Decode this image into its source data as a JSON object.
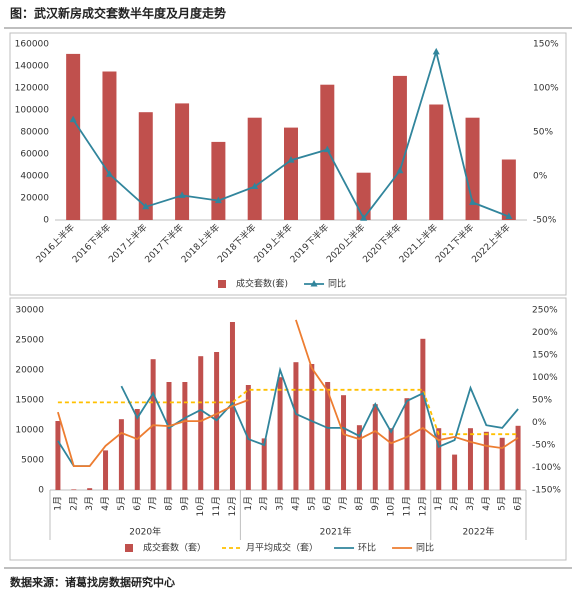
{
  "header": {
    "title": "图：武汉新房成交套数半年度及月度走势"
  },
  "chart_data": [
    {
      "type": "bar_line",
      "categories": [
        "2016上半年",
        "2016下半年",
        "2017上半年",
        "2017下半年",
        "2018上半年",
        "2018下半年",
        "2019上半年",
        "2019下半年",
        "2020上半年",
        "2020下半年",
        "2021上半年",
        "2021下半年",
        "2022上半年"
      ],
      "series": [
        {
          "name": "成交套数(套)",
          "type": "bar",
          "color": "#c0504d",
          "values": [
            151000,
            135000,
            98000,
            106000,
            71000,
            93000,
            84000,
            123000,
            43000,
            131000,
            105000,
            93000,
            55000
          ]
        },
        {
          "name": "同比",
          "type": "line",
          "axis": "y2",
          "marker": "triangle",
          "color": "#31859c",
          "values": [
            64,
            2,
            -35,
            -22,
            -28,
            -12,
            18,
            30,
            -48,
            6,
            141,
            -30,
            -46
          ]
        }
      ],
      "ylim": [
        0,
        160000
      ],
      "yticks": [
        0,
        20000,
        40000,
        60000,
        80000,
        100000,
        120000,
        140000,
        160000
      ],
      "y2lim": [
        -50,
        150
      ],
      "y2ticks": [
        {
          "value": -50,
          "label": "-50%"
        },
        {
          "value": 0,
          "label": "0%"
        },
        {
          "value": 50,
          "label": "50%"
        },
        {
          "value": 100,
          "label": "100%"
        },
        {
          "value": 150,
          "label": "150%"
        }
      ]
    },
    {
      "type": "bar_line",
      "categories": [
        "1月",
        "2月",
        "3月",
        "4月",
        "5月",
        "6月",
        "7月",
        "8月",
        "9月",
        "10月",
        "11月",
        "12月",
        "1月",
        "2月",
        "3月",
        "4月",
        "5月",
        "6月",
        "7月",
        "8月",
        "9月",
        "10月",
        "11月",
        "12月",
        "1月",
        "2月",
        "3月",
        "4月",
        "5月",
        "6月"
      ],
      "x_groups": [
        "2020年",
        "2021年",
        "2022年"
      ],
      "series": [
        {
          "name": "成交套数（套）",
          "type": "bar",
          "color": "#c0504d",
          "values": [
            11500,
            100,
            300,
            6600,
            11800,
            13500,
            21800,
            18000,
            18000,
            22300,
            23000,
            28000,
            17500,
            8600,
            18800,
            21300,
            21000,
            18000,
            15800,
            10800,
            14300,
            10300,
            15300,
            25200,
            10300,
            5900,
            10300,
            9700,
            8700,
            10700
          ]
        },
        {
          "name": "月平均成交（套）",
          "type": "line",
          "dashed": true,
          "color": "#ffc000",
          "values": [
            14600,
            14600,
            14600,
            14600,
            14600,
            14600,
            14600,
            14600,
            14600,
            14600,
            14600,
            14600,
            16700,
            16700,
            16700,
            16700,
            16700,
            16700,
            16700,
            16700,
            16700,
            16700,
            16700,
            16700,
            9300,
            9300,
            9300,
            9300,
            9300,
            9300
          ]
        },
        {
          "name": "环比",
          "type": "line",
          "axis": "y2",
          "color": "#31859c",
          "values": [
            -41,
            -97,
            -97,
            null,
            81,
            10,
            65,
            -12,
            10,
            28,
            5,
            43,
            -37,
            -50,
            117,
            19,
            3,
            -12,
            -12,
            -30,
            41,
            -21,
            48,
            65,
            -54,
            -39,
            77,
            -6,
            -12,
            30
          ]
        },
        {
          "name": "同比",
          "type": "line",
          "axis": "y2",
          "color": "#ed7d31",
          "values": [
            23,
            -97,
            -97,
            -52,
            -23,
            -37,
            -6,
            -8,
            3,
            3,
            19,
            37,
            50,
            null,
            null,
            228,
            121,
            70,
            -26,
            -37,
            -19,
            -46,
            -32,
            -12,
            -39,
            -32,
            -43,
            -52,
            -57,
            -34
          ]
        }
      ],
      "ylim": [
        0,
        30000
      ],
      "yticks": [
        0,
        5000,
        10000,
        15000,
        20000,
        25000,
        30000
      ],
      "y2lim": [
        -150,
        250
      ],
      "y2ticks": [
        {
          "value": -150,
          "label": "-150%"
        },
        {
          "value": -100,
          "label": "-100%"
        },
        {
          "value": -50,
          "label": "-50%"
        },
        {
          "value": 0,
          "label": "0%"
        },
        {
          "value": 50,
          "label": "50%"
        },
        {
          "value": 100,
          "label": "100%"
        },
        {
          "value": 150,
          "label": "150%"
        },
        {
          "value": 200,
          "label": "200%"
        },
        {
          "value": 250,
          "label": "250%"
        }
      ]
    }
  ],
  "footer": {
    "source": "数据来源：诸葛找房数据研究中心"
  }
}
